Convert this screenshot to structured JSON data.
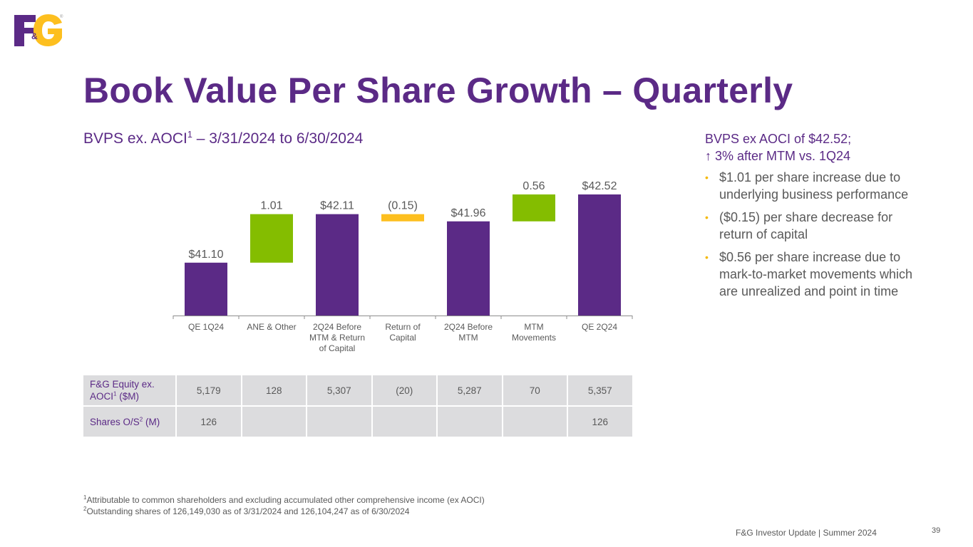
{
  "header": {
    "logo": {
      "text_left": "F",
      "text_amp": "&",
      "text_right": "G",
      "registered": "®",
      "colors": {
        "purple": "#5b2a86",
        "gold": "#fdbf1f"
      }
    },
    "title": "Book Value Per Share Growth – Quarterly",
    "subtitle": {
      "pre": "BVPS ex. AOCI",
      "sup": "1",
      "post": " – 3/31/2024 to 6/30/2024"
    }
  },
  "chart_data": {
    "type": "waterfall",
    "title": "BVPS ex. AOCI1 – 3/31/2024 to 6/30/2024",
    "categories": [
      "QE 1Q24",
      "ANE & Other",
      "2Q24 Before MTM & Return of Capital",
      "Return of Capital",
      "2Q24 Before MTM",
      "MTM Movements",
      "QE 2Q24"
    ],
    "category_lines": [
      [
        "QE 1Q24"
      ],
      [
        "ANE & Other"
      ],
      [
        "2Q24 Before",
        "MTM & Return",
        "of Capital"
      ],
      [
        "Return of",
        "Capital"
      ],
      [
        "2Q24 Before",
        "MTM"
      ],
      [
        "MTM",
        "Movements"
      ],
      [
        "QE 2Q24"
      ]
    ],
    "series": [
      {
        "kind": "total",
        "value": 41.1,
        "label": "$41.10"
      },
      {
        "kind": "increase",
        "value": 1.01,
        "label": "1.01"
      },
      {
        "kind": "total",
        "value": 42.11,
        "label": "$42.11"
      },
      {
        "kind": "decrease",
        "value": -0.15,
        "label": "(0.15)"
      },
      {
        "kind": "total",
        "value": 41.96,
        "label": "$41.96"
      },
      {
        "kind": "increase",
        "value": 0.56,
        "label": "0.56"
      },
      {
        "kind": "total",
        "value": 42.52,
        "label": "$42.52"
      }
    ],
    "xlabel": "",
    "ylabel": "",
    "ylim": [
      40.0,
      42.6
    ],
    "grid": false,
    "colors": {
      "total": "#5b2a86",
      "increase": "#84bd00",
      "decrease": "#fdbf1f",
      "axis": "#8c8c8c"
    }
  },
  "sidebar": {
    "heading_line1": "BVPS ex AOCI of $42.52;",
    "heading_line2": "↑ 3% after MTM vs. 1Q24",
    "bullet_glyph": "•",
    "bullets": [
      "$1.01 per share increase due to underlying business performance",
      "($0.15) per share decrease for return of capital",
      "$0.56 per share increase due to mark-to-market movements which are unrealized and point in time"
    ]
  },
  "table": {
    "rows": [
      {
        "label_pre": "F&G Equity ex. AOCI",
        "label_sup": "1",
        "label_post": " ($M)",
        "cells": [
          "5,179",
          "128",
          "5,307",
          "(20)",
          "5,287",
          "70",
          "5,357"
        ]
      },
      {
        "label_pre": "Shares O/S",
        "label_sup": "2",
        "label_post": " (M)",
        "cells": [
          "126",
          "",
          "",
          "",
          "",
          "",
          "126"
        ]
      }
    ]
  },
  "footnotes": [
    {
      "sup": "1",
      "text": "Attributable to common shareholders and excluding accumulated other comprehensive income (ex AOCI)"
    },
    {
      "sup": "2",
      "text": "Outstanding shares of 126,149,030 as of 3/31/2024 and 126,104,247 as of 6/30/2024"
    }
  ],
  "footer": {
    "text": "F&G Investor Update | Summer 2024",
    "page": "39"
  }
}
